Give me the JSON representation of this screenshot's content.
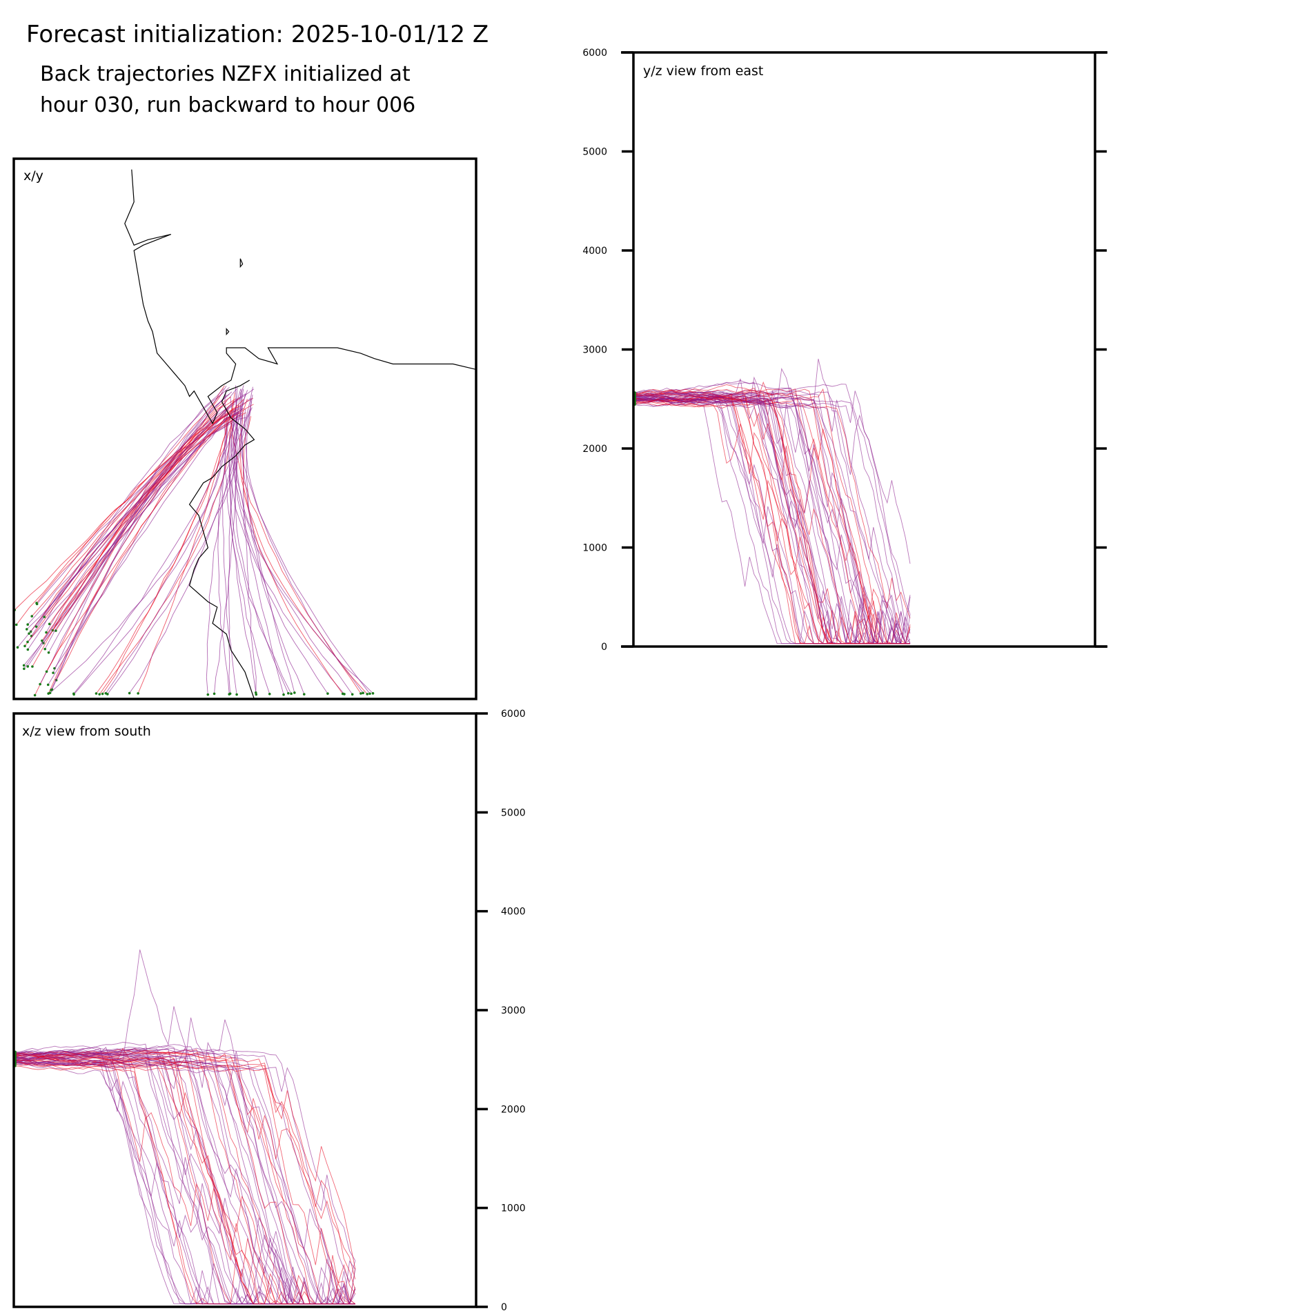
{
  "figure": {
    "title": "Forecast initialization: 2025-10-01/12 Z",
    "subtitle_line1": "Back trajectories NZFX initialized at",
    "subtitle_line2": "hour 030, run backward to hour 006"
  },
  "colors": {
    "late_segment": "#e8001a",
    "early_segment": "#8a1a8c",
    "start_marker": "#1a7a1a",
    "coastline": "#000000",
    "frame": "#000000"
  },
  "chart_data": [
    {
      "id": "xy",
      "type": "line",
      "title": "x/y",
      "xlabel": "",
      "ylabel": "",
      "grid": false,
      "description_of_series": "trajectory paths in horizontal plane with coastline",
      "coastline": {
        "main": [
          [
            0.255,
            0.02
          ],
          [
            0.26,
            0.08
          ],
          [
            0.24,
            0.12
          ],
          [
            0.26,
            0.16
          ],
          [
            0.29,
            0.15
          ],
          [
            0.34,
            0.14
          ],
          [
            0.28,
            0.16
          ],
          [
            0.26,
            0.17
          ],
          [
            0.27,
            0.22
          ],
          [
            0.28,
            0.27
          ],
          [
            0.29,
            0.3
          ],
          [
            0.3,
            0.32
          ],
          [
            0.31,
            0.36
          ],
          [
            0.33,
            0.38
          ],
          [
            0.35,
            0.4
          ],
          [
            0.37,
            0.42
          ],
          [
            0.38,
            0.44
          ],
          [
            0.39,
            0.43
          ],
          [
            0.41,
            0.46
          ],
          [
            0.43,
            0.49
          ],
          [
            0.44,
            0.47
          ],
          [
            0.42,
            0.44
          ],
          [
            0.45,
            0.42
          ],
          [
            0.47,
            0.41
          ],
          [
            0.48,
            0.38
          ],
          [
            0.46,
            0.36
          ],
          [
            0.46,
            0.35
          ],
          [
            0.5,
            0.35
          ],
          [
            0.53,
            0.37
          ],
          [
            0.57,
            0.38
          ],
          [
            0.55,
            0.35
          ],
          [
            0.58,
            0.35
          ],
          [
            0.6,
            0.35
          ],
          [
            0.65,
            0.35
          ],
          [
            0.7,
            0.35
          ],
          [
            0.75,
            0.36
          ],
          [
            0.78,
            0.37
          ],
          [
            0.82,
            0.38
          ],
          [
            0.87,
            0.38
          ],
          [
            0.92,
            0.38
          ],
          [
            0.95,
            0.38
          ],
          [
            1.0,
            0.39
          ]
        ],
        "peninsula": [
          [
            0.51,
            0.41
          ],
          [
            0.49,
            0.42
          ],
          [
            0.46,
            0.43
          ],
          [
            0.45,
            0.45
          ],
          [
            0.47,
            0.48
          ],
          [
            0.5,
            0.5
          ],
          [
            0.52,
            0.52
          ],
          [
            0.5,
            0.53
          ],
          [
            0.48,
            0.55
          ],
          [
            0.45,
            0.57
          ],
          [
            0.43,
            0.59
          ],
          [
            0.41,
            0.6
          ],
          [
            0.38,
            0.64
          ],
          [
            0.4,
            0.66
          ],
          [
            0.41,
            0.69
          ],
          [
            0.42,
            0.72
          ],
          [
            0.4,
            0.74
          ],
          [
            0.39,
            0.76
          ],
          [
            0.38,
            0.79
          ],
          [
            0.42,
            0.82
          ],
          [
            0.44,
            0.83
          ],
          [
            0.43,
            0.86
          ],
          [
            0.46,
            0.88
          ],
          [
            0.47,
            0.91
          ],
          [
            0.5,
            0.95
          ],
          [
            0.52,
            1.0
          ]
        ],
        "islands": [
          [
            [
              0.49,
              0.185
            ],
            [
              0.495,
              0.195
            ],
            [
              0.49,
              0.2
            ]
          ],
          [
            [
              0.46,
              0.315
            ],
            [
              0.465,
              0.32
            ],
            [
              0.46,
              0.325
            ]
          ]
        ]
      },
      "x_range": [
        0,
        1
      ],
      "y_range": [
        0,
        1
      ]
    },
    {
      "id": "yz",
      "type": "line",
      "title": "y/z view from east",
      "xlabel": "",
      "ylabel": "",
      "ylim": [
        0,
        6000
      ],
      "y_ticks": [
        0,
        1000,
        2000,
        3000,
        4000,
        5000,
        6000
      ],
      "y_tick_labels": [
        "0",
        "1000",
        "2000",
        "3000",
        "4000",
        "5000",
        "6000"
      ],
      "tick_side": "left",
      "grid": false
    },
    {
      "id": "xz",
      "type": "line",
      "title": "x/z view from south",
      "xlabel": "",
      "ylabel": "",
      "ylim": [
        0,
        6000
      ],
      "y_ticks": [
        0,
        1000,
        2000,
        3000,
        4000,
        5000,
        6000
      ],
      "y_tick_labels": [
        "0",
        "1000",
        "2000",
        "3000",
        "4000",
        "5000",
        "6000"
      ],
      "tick_side": "right",
      "grid": false
    }
  ]
}
